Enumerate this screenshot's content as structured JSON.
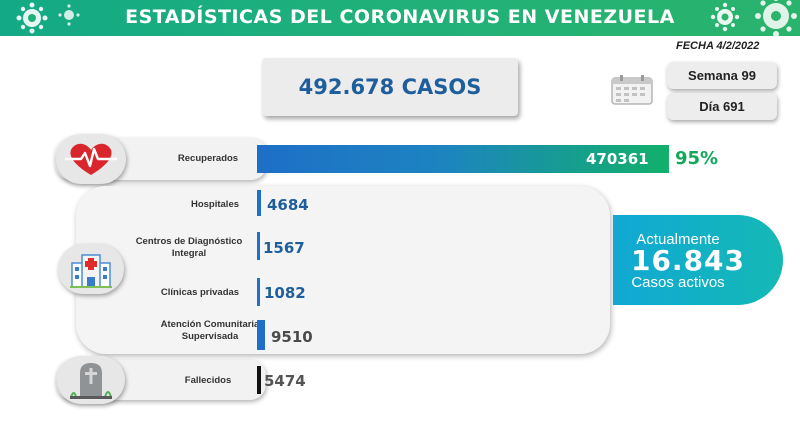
{
  "header": {
    "title": "ESTADÍSTICAS DEL CORONAVIRUS EN VENEZUELA"
  },
  "fecha": "FECHA 4/2/2022",
  "total": {
    "label": "492.678 CASOS"
  },
  "calendar": {
    "semana": "Semana 99",
    "dia": "Día 691"
  },
  "recuperados": {
    "label": "Recuperados",
    "value": "470361",
    "percent": "95%",
    "icon": "heart-pulse-icon"
  },
  "hospitalizacion": {
    "icon": "hospital-icon",
    "items": [
      {
        "label": "Hospitales",
        "value": "4684"
      },
      {
        "label": "Centros de Diagnóstico Integral",
        "value": "1567"
      },
      {
        "label": "Clínicas privadas",
        "value": "1082"
      },
      {
        "label": "Atención Comunitaria Supervisada",
        "value": "9510"
      }
    ]
  },
  "fallecidos": {
    "label": "Fallecidos",
    "value": "5474",
    "icon": "gravestone-icon"
  },
  "activos": {
    "line1": "Actualmente",
    "value": "16.843",
    "line2": "Casos activos"
  },
  "colors": {
    "banner": "#1fb07a",
    "blue": "#1f5e9c",
    "recovered_bar_start": "#1e6fc7",
    "recovered_bar_end": "#12b06a",
    "percent": "#12a85c",
    "activos": "#13b0c6"
  }
}
